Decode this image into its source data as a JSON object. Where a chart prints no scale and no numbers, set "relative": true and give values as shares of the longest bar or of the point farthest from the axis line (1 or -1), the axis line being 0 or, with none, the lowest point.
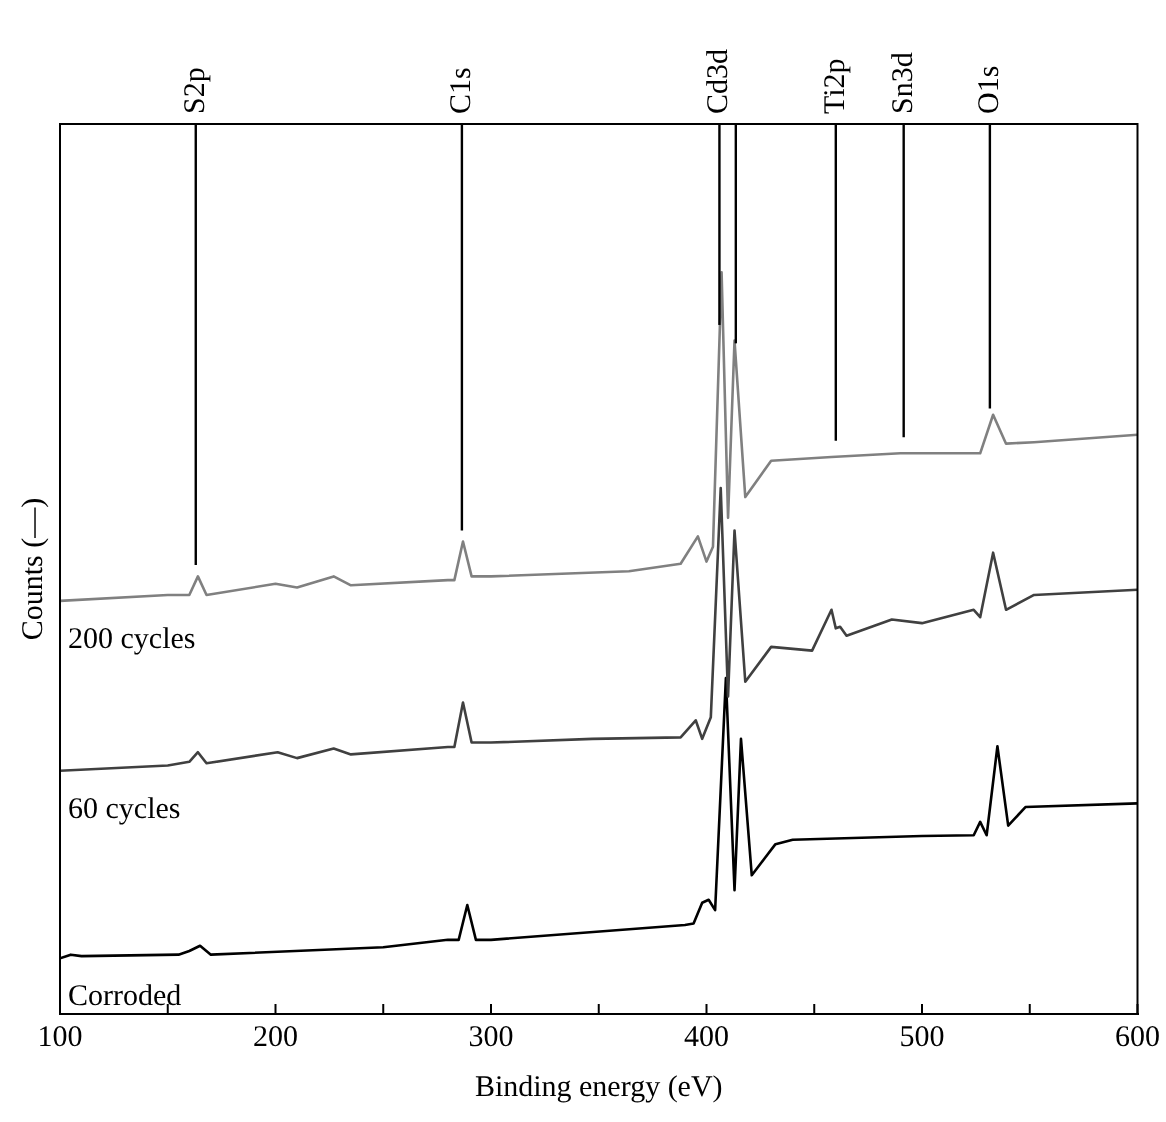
{
  "chart_data": {
    "type": "line",
    "relative": true,
    "xlabel": "Binding energy (eV)",
    "ylabel": "Counts (—)",
    "xlim": [
      100,
      600
    ],
    "xticks": [
      100,
      {
        "value": 150,
        "label": null
      },
      200,
      {
        "value": 250,
        "label": null
      },
      300,
      {
        "value": 350,
        "label": null
      },
      400,
      {
        "value": 450,
        "label": null
      },
      500,
      {
        "value": 550,
        "label": null
      },
      600
    ],
    "marker": "none",
    "legend": false,
    "grid": false,
    "tick_labels": "x",
    "ref_lines": [
      {
        "axis": "x",
        "value": 163,
        "label": "S2p"
      },
      {
        "axis": "x",
        "value": 286.5,
        "label": "C1s"
      },
      {
        "axis": "x",
        "value": 406,
        "label": "Cd3d"
      },
      {
        "axis": "x",
        "value": 413.6
      },
      {
        "axis": "x",
        "value": 460,
        "label": "Ti2p"
      },
      {
        "axis": "x",
        "value": 491.5,
        "label": "Sn3d"
      },
      {
        "axis": "x",
        "value": 531.5,
        "label": "O1s"
      }
    ],
    "series": [
      {
        "name": "200 cycles",
        "color": "#808080",
        "x": [
          100,
          150,
          160,
          164,
          168,
          200,
          210,
          227,
          235,
          280,
          283,
          287,
          291,
          300,
          364,
          388,
          396,
          400,
          403,
          407,
          410,
          413,
          418,
          430,
          458,
          490,
          527,
          533,
          539,
          552,
          600
        ],
        "values": [
          0.557,
          0.565,
          0.565,
          0.59,
          0.565,
          0.58,
          0.575,
          0.59,
          0.578,
          0.585,
          0.585,
          0.637,
          0.59,
          0.59,
          0.597,
          0.607,
          0.644,
          0.61,
          0.63,
          1.0,
          0.669,
          0.908,
          0.697,
          0.746,
          0.751,
          0.756,
          0.756,
          0.808,
          0.769,
          0.771,
          0.781
        ]
      },
      {
        "name": "60 cycles",
        "color": "#404040",
        "x": [
          100,
          150,
          160,
          164,
          168,
          201,
          210,
          227,
          235,
          280,
          283,
          287,
          291,
          300,
          347,
          388,
          395,
          398,
          402,
          406.6,
          410,
          413,
          418,
          430,
          449,
          458,
          460,
          462,
          465,
          486,
          500,
          524,
          527,
          533,
          539,
          552,
          600
        ],
        "values": [
          0.328,
          0.335,
          0.34,
          0.353,
          0.338,
          0.353,
          0.345,
          0.358,
          0.35,
          0.36,
          0.36,
          0.42,
          0.366,
          0.366,
          0.371,
          0.373,
          0.396,
          0.371,
          0.4,
          0.709,
          0.428,
          0.652,
          0.448,
          0.495,
          0.49,
          0.545,
          0.52,
          0.522,
          0.51,
          0.532,
          0.527,
          0.545,
          0.535,
          0.622,
          0.545,
          0.565,
          0.572
        ]
      },
      {
        "name": "Corroded",
        "color": "#000000",
        "x": [
          100,
          105,
          110,
          155,
          160,
          165,
          170,
          250,
          280,
          285,
          289,
          293,
          300,
          390,
          394,
          398,
          401,
          404,
          409,
          413,
          416,
          421,
          427,
          432,
          440,
          500,
          524,
          527,
          530,
          535,
          540,
          548,
          600
        ],
        "values": [
          0.075,
          0.08,
          0.078,
          0.08,
          0.085,
          0.092,
          0.08,
          0.09,
          0.1,
          0.1,
          0.147,
          0.1,
          0.1,
          0.12,
          0.122,
          0.15,
          0.154,
          0.14,
          0.453,
          0.167,
          0.371,
          0.187,
          0.21,
          0.229,
          0.235,
          0.24,
          0.241,
          0.259,
          0.241,
          0.361,
          0.254,
          0.279,
          0.284
        ]
      }
    ]
  }
}
